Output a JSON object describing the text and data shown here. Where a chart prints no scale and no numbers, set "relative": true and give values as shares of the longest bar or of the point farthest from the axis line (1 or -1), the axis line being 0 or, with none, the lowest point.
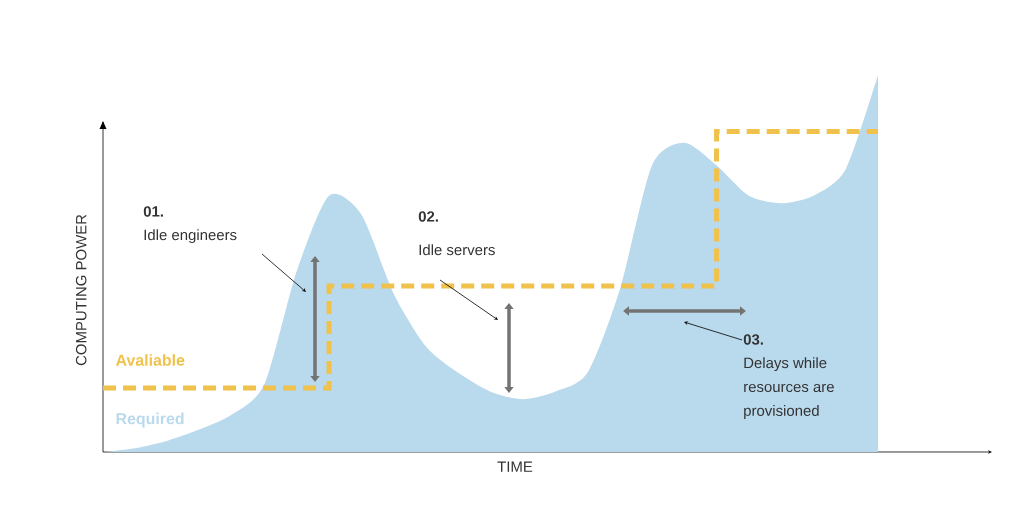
{
  "chart_data": {
    "type": "area",
    "relative": true,
    "xlabel": "TIME",
    "ylabel": "COMPUTING POWER",
    "categories": [
      null,
      null,
      null,
      null,
      null,
      null,
      null,
      null,
      null,
      null,
      null,
      null,
      null,
      null,
      null,
      null,
      null,
      null,
      null,
      null,
      null,
      null,
      null,
      null,
      null
    ],
    "series": [
      {
        "name": "Required",
        "type": "area",
        "color": "#b9d9ec",
        "values": [
          0,
          0.01,
          0.03,
          0.06,
          0.1,
          0.18,
          0.48,
          0.68,
          0.63,
          0.42,
          0.28,
          0.21,
          0.16,
          0.14,
          0.16,
          0.21,
          0.43,
          0.76,
          0.82,
          0.76,
          0.68,
          0.66,
          0.68,
          0.75,
          1
        ]
      },
      {
        "name": "Avaliable",
        "type": "step",
        "color": "#f0c24b",
        "line_style": "dashed",
        "values": [
          0.17,
          0.17,
          0.17,
          0.17,
          0.17,
          0.17,
          0.17,
          0.44,
          0.44,
          0.44,
          0.44,
          0.44,
          0.44,
          0.44,
          0.44,
          0.44,
          0.44,
          0.44,
          0.44,
          0.85,
          0.85,
          0.85,
          0.85,
          0.85,
          0.85
        ]
      }
    ],
    "annotations": [
      "01.",
      "Idle engineers",
      "02.",
      "Idle servers",
      "03.",
      "Delays while resources are provisioned"
    ],
    "marker": "none"
  }
}
